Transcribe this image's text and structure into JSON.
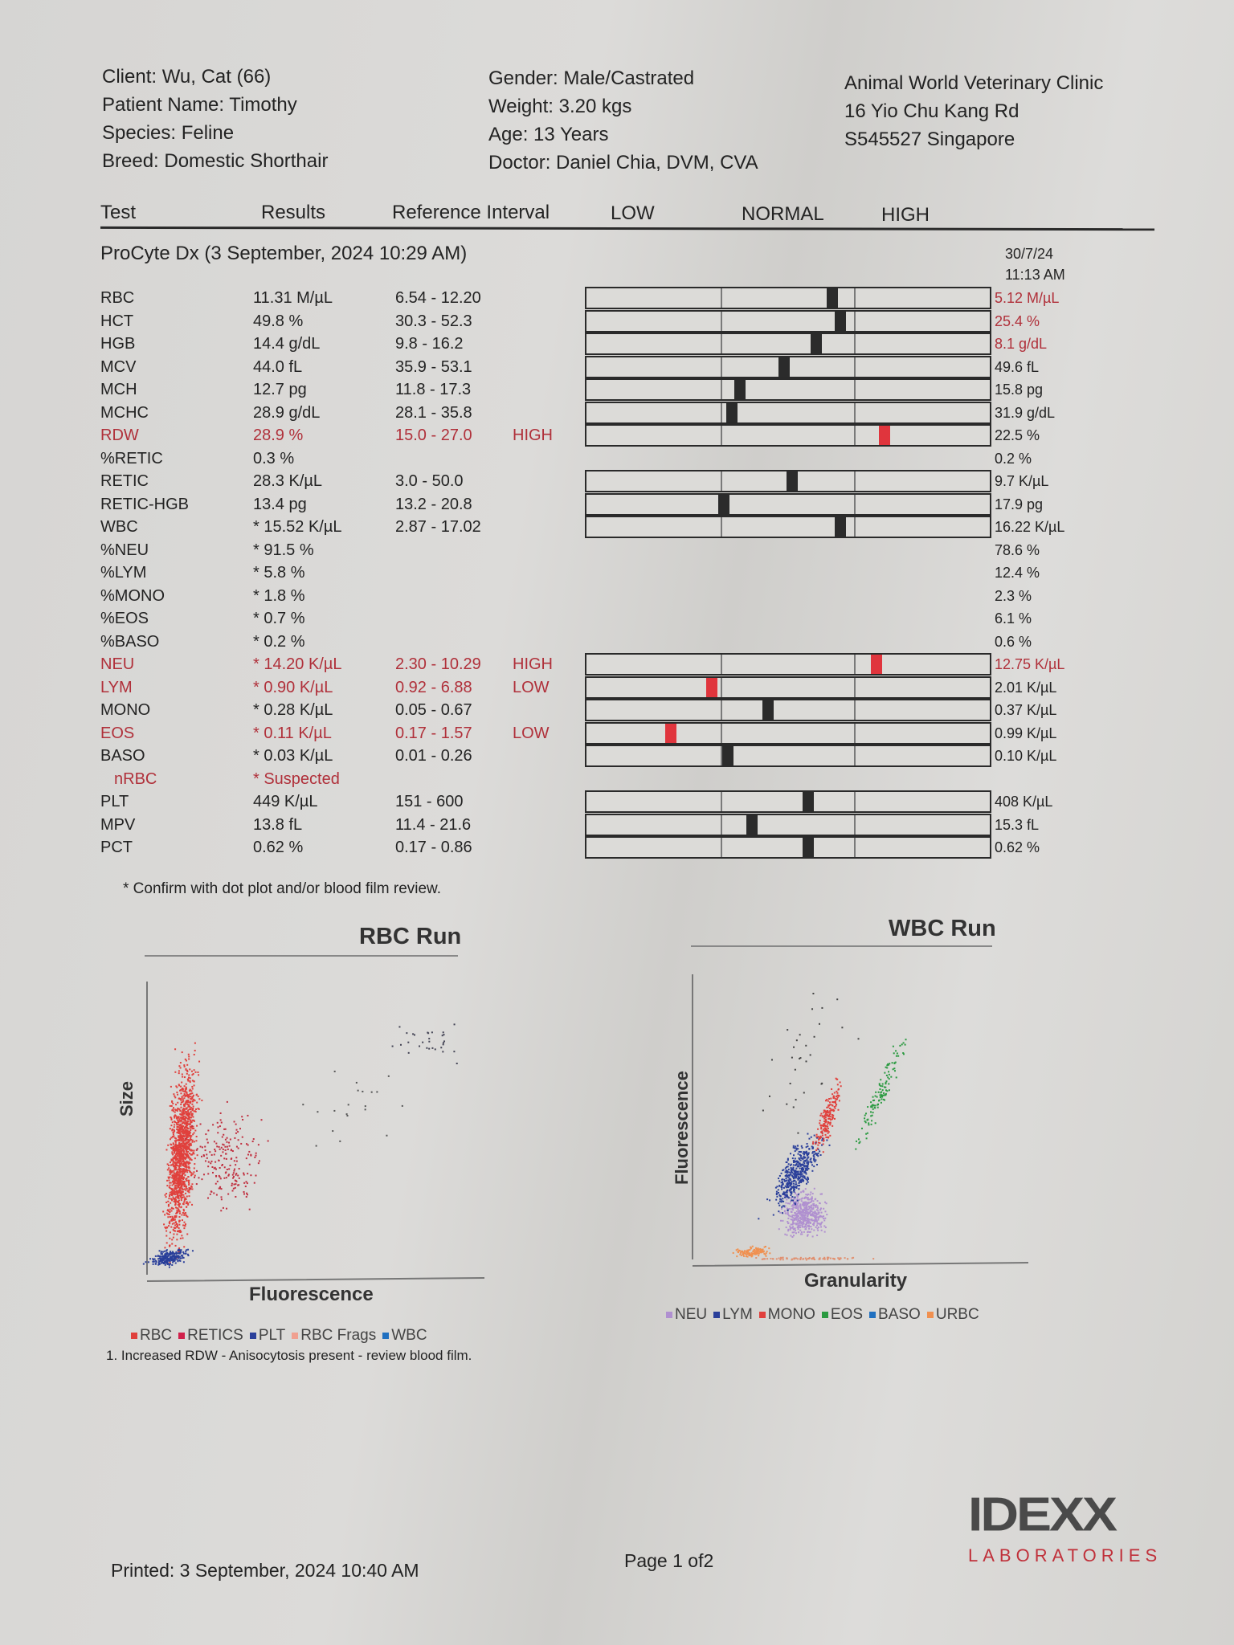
{
  "patient": {
    "client": "Client: Wu, Cat (66)",
    "name": "Patient Name: Timothy",
    "species": "Species: Feline",
    "breed": "Breed: Domestic Shorthair",
    "gender": "Gender: Male/Castrated",
    "weight": "Weight: 3.20 kgs",
    "age": "Age: 13 Years",
    "doctor": "Doctor: Daniel Chia, DVM, CVA"
  },
  "clinic": {
    "name": "Animal World Veterinary Clinic",
    "address1": "16 Yio Chu Kang Rd",
    "address2": "S545527 Singapore"
  },
  "table_header": {
    "test": "Test",
    "results": "Results",
    "reference": "Reference Interval",
    "low": "LOW",
    "normal": "NORMAL",
    "high": "HIGH"
  },
  "run": {
    "title": "ProCyte Dx (3 September, 2024 10:29 AM)",
    "previous_date": "30/7/24",
    "previous_time": "11:13 AM"
  },
  "rows": [
    {
      "test": "RBC",
      "result": "11.31 M/µL",
      "ref": "6.54 - 12.20",
      "flag": "",
      "abnormal": false,
      "indicator": 0.61,
      "group": 1,
      "prev": "5.12 M/µL",
      "prev_abnormal": true
    },
    {
      "test": "HCT",
      "result": "49.8 %",
      "ref": "30.3 - 52.3",
      "flag": "",
      "abnormal": false,
      "indicator": 0.63,
      "group": 1,
      "prev": "25.4 %",
      "prev_abnormal": true
    },
    {
      "test": "HGB",
      "result": "14.4 g/dL",
      "ref": "9.8 - 16.2",
      "flag": "",
      "abnormal": false,
      "indicator": 0.57,
      "group": 1,
      "prev": "8.1 g/dL",
      "prev_abnormal": true
    },
    {
      "test": "MCV",
      "result": "44.0 fL",
      "ref": "35.9 - 53.1",
      "flag": "",
      "abnormal": false,
      "indicator": 0.49,
      "group": 1,
      "prev": "49.6 fL",
      "prev_abnormal": false
    },
    {
      "test": "MCH",
      "result": "12.7 pg",
      "ref": "11.8 - 17.3",
      "flag": "",
      "abnormal": false,
      "indicator": 0.38,
      "group": 1,
      "prev": "15.8 pg",
      "prev_abnormal": false
    },
    {
      "test": "MCHC",
      "result": "28.9 g/dL",
      "ref": "28.1 - 35.8",
      "flag": "",
      "abnormal": false,
      "indicator": 0.36,
      "group": 1,
      "prev": "31.9 g/dL",
      "prev_abnormal": false
    },
    {
      "test": "RDW",
      "result": "28.9 %",
      "ref": "15.0 - 27.0",
      "flag": "HIGH",
      "abnormal": true,
      "indicator": 0.74,
      "group": 1,
      "prev": "22.5 %",
      "prev_abnormal": false
    },
    {
      "test": "%RETIC",
      "result": "0.3 %",
      "ref": "",
      "flag": "",
      "abnormal": false,
      "indicator": null,
      "group": 0,
      "prev": "0.2 %",
      "prev_abnormal": false
    },
    {
      "test": "RETIC",
      "result": "28.3 K/µL",
      "ref": "3.0 - 50.0",
      "flag": "",
      "abnormal": false,
      "indicator": 0.51,
      "group": 2,
      "prev": "9.7 K/µL",
      "prev_abnormal": false
    },
    {
      "test": "RETIC-HGB",
      "result": "13.4 pg",
      "ref": "13.2 - 20.8",
      "flag": "",
      "abnormal": false,
      "indicator": 0.34,
      "group": 2,
      "prev": "17.9 pg",
      "prev_abnormal": false
    },
    {
      "test": "WBC",
      "result": "* 15.52 K/µL",
      "ref": "2.87 - 17.02",
      "flag": "",
      "abnormal": false,
      "indicator": 0.63,
      "group": 2,
      "prev": "16.22 K/µL",
      "prev_abnormal": false
    },
    {
      "test": "%NEU",
      "result": "* 91.5 %",
      "ref": "",
      "flag": "",
      "abnormal": false,
      "indicator": null,
      "group": 0,
      "prev": "78.6 %",
      "prev_abnormal": false
    },
    {
      "test": "%LYM",
      "result": "* 5.8 %",
      "ref": "",
      "flag": "",
      "abnormal": false,
      "indicator": null,
      "group": 0,
      "prev": "12.4 %",
      "prev_abnormal": false
    },
    {
      "test": "%MONO",
      "result": "* 1.8 %",
      "ref": "",
      "flag": "",
      "abnormal": false,
      "indicator": null,
      "group": 0,
      "prev": "2.3 %",
      "prev_abnormal": false
    },
    {
      "test": "%EOS",
      "result": "* 0.7 %",
      "ref": "",
      "flag": "",
      "abnormal": false,
      "indicator": null,
      "group": 0,
      "prev": "6.1 %",
      "prev_abnormal": false
    },
    {
      "test": "%BASO",
      "result": "* 0.2 %",
      "ref": "",
      "flag": "",
      "abnormal": false,
      "indicator": null,
      "group": 0,
      "prev": "0.6 %",
      "prev_abnormal": false
    },
    {
      "test": "NEU",
      "result": "* 14.20 K/µL",
      "ref": "2.30 - 10.29",
      "flag": "HIGH",
      "abnormal": true,
      "indicator": 0.72,
      "group": 3,
      "prev": "12.75 K/µL",
      "prev_abnormal": true
    },
    {
      "test": "LYM",
      "result": "* 0.90 K/µL",
      "ref": "0.92 - 6.88",
      "flag": "LOW",
      "abnormal": true,
      "indicator": 0.31,
      "group": 3,
      "prev": "2.01 K/µL",
      "prev_abnormal": false
    },
    {
      "test": "MONO",
      "result": "* 0.28 K/µL",
      "ref": "0.05 - 0.67",
      "flag": "",
      "abnormal": false,
      "indicator": 0.45,
      "group": 3,
      "prev": "0.37 K/µL",
      "prev_abnormal": false
    },
    {
      "test": "EOS",
      "result": "* 0.11 K/µL",
      "ref": "0.17 - 1.57",
      "flag": "LOW",
      "abnormal": true,
      "indicator": 0.21,
      "group": 3,
      "prev": "0.99 K/µL",
      "prev_abnormal": false
    },
    {
      "test": "BASO",
      "result": "* 0.03 K/µL",
      "ref": "0.01 - 0.26",
      "flag": "",
      "abnormal": false,
      "indicator": 0.35,
      "group": 3,
      "prev": "0.10 K/µL",
      "prev_abnormal": false
    },
    {
      "test": "nRBC",
      "result": "* Suspected",
      "ref": "",
      "flag": "",
      "abnormal": true,
      "indicator": null,
      "group": 0,
      "prev": "",
      "prev_abnormal": false
    },
    {
      "test": "PLT",
      "result": "449 K/µL",
      "ref": "151 - 600",
      "flag": "",
      "abnormal": false,
      "indicator": 0.55,
      "group": 4,
      "prev": "408 K/µL",
      "prev_abnormal": false
    },
    {
      "test": "MPV",
      "result": "13.8 fL",
      "ref": "11.4 - 21.6",
      "flag": "",
      "abnormal": false,
      "indicator": 0.41,
      "group": 4,
      "prev": "15.3 fL",
      "prev_abnormal": false
    },
    {
      "test": "PCT",
      "result": "0.62 %",
      "ref": "0.17 - 0.86",
      "flag": "",
      "abnormal": false,
      "indicator": 0.55,
      "group": 4,
      "prev": "0.62 %",
      "prev_abnormal": false
    }
  ],
  "footnote": "* Confirm with dot plot and/or blood film review.",
  "rbc_plot": {
    "title": "RBC Run",
    "xlabel": "Fluorescence",
    "ylabel": "Size",
    "legend": [
      {
        "label": "RBC",
        "color": "#e0403c"
      },
      {
        "label": "RETICS",
        "color": "#d0204a"
      },
      {
        "label": "PLT",
        "color": "#2a3f9a"
      },
      {
        "label": "RBC Frags",
        "color": "#f0a090"
      },
      {
        "label": "WBC",
        "color": "#2070c0"
      }
    ],
    "note": "1. Increased RDW - Anisocytosis present - review blood film."
  },
  "wbc_plot": {
    "title": "WBC Run",
    "xlabel": "Granularity",
    "ylabel": "Fluorescence",
    "legend": [
      {
        "label": "NEU",
        "color": "#b090d0"
      },
      {
        "label": "LYM",
        "color": "#2a3f9a"
      },
      {
        "label": "MONO",
        "color": "#e0403c"
      },
      {
        "label": "EOS",
        "color": "#2a9a40"
      },
      {
        "label": "BASO",
        "color": "#2070c0"
      },
      {
        "label": "URBC",
        "color": "#f09050"
      }
    ]
  },
  "footer": {
    "printed": "Printed: 3 September, 2024 10:40 AM",
    "page": "Page 1 of2",
    "logo_text": "IDEXX",
    "logo_sub": "LABORATORIES"
  }
}
